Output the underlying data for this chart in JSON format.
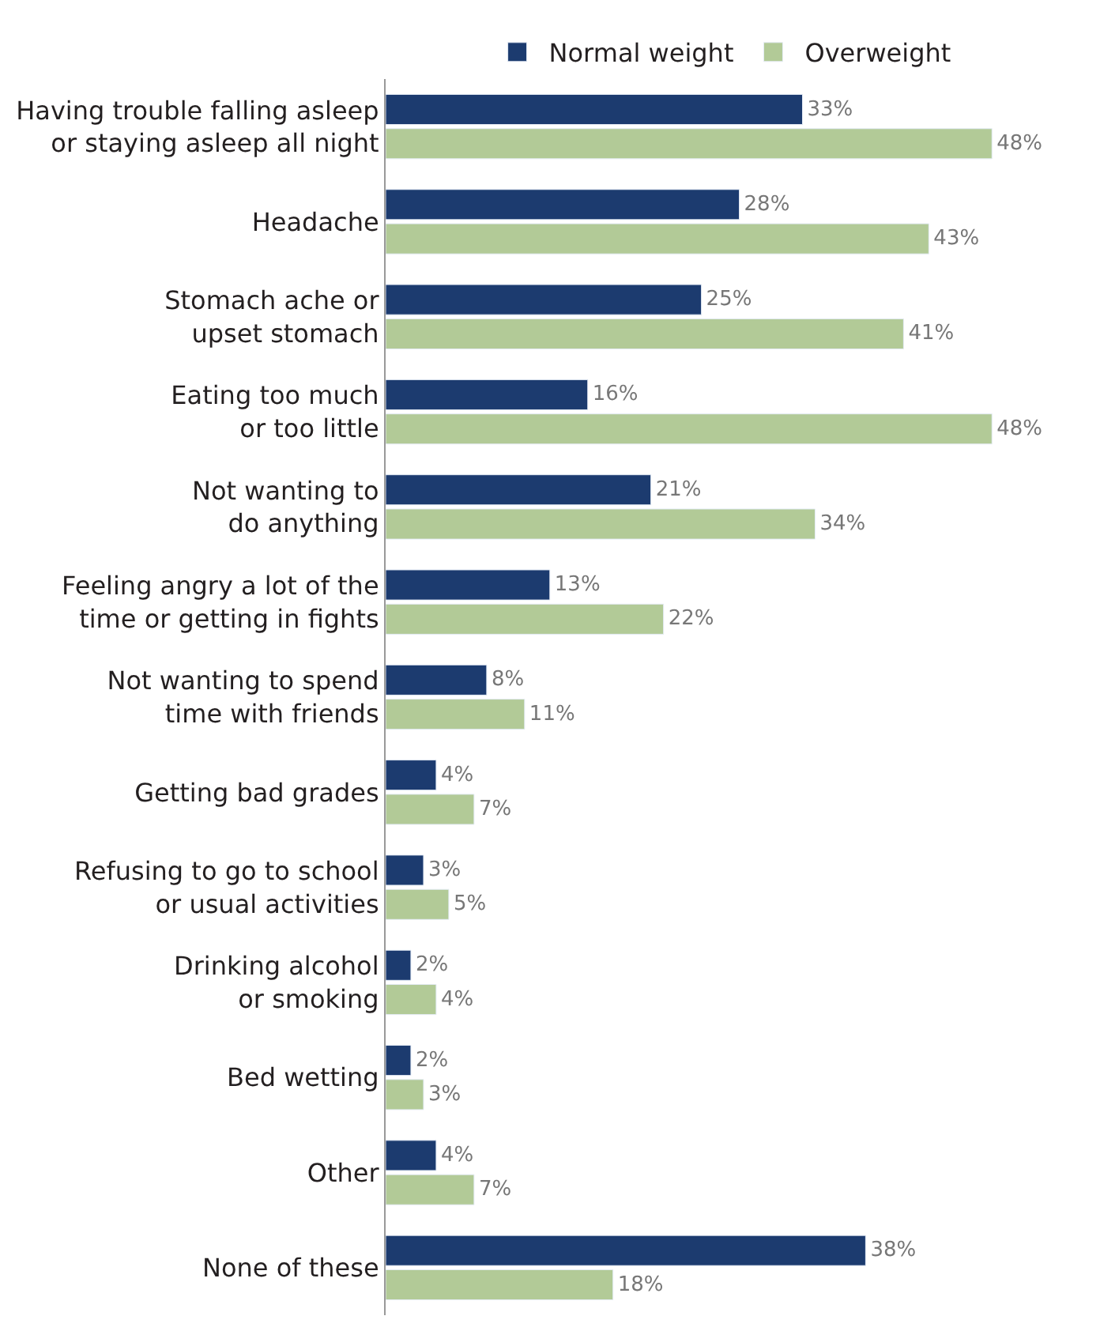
{
  "chart_data": {
    "type": "bar",
    "orientation": "horizontal",
    "legend": "top",
    "categories": [
      "Having trouble falling asleep\nor staying asleep all night",
      "Headache",
      "Stomach ache or\nupset stomach",
      "Eating too much\nor too little",
      "Not wanting to\ndo anything",
      "Feeling angry a lot of the\ntime or getting in fights",
      "Not wanting to spend\ntime with friends",
      "Getting bad grades",
      "Refusing to go to school\nor usual activities",
      "Drinking alcohol\nor smoking",
      "Bed wetting",
      "Other",
      "None of these"
    ],
    "series": [
      {
        "name": "Normal weight",
        "color": "#1c3b6f",
        "values": [
          33,
          28,
          25,
          16,
          21,
          13,
          8,
          4,
          3,
          2,
          2,
          4,
          38
        ],
        "value_labels": [
          "33%",
          "28%",
          "25%",
          "16%",
          "21%",
          "13%",
          "8%",
          "4%",
          "3%",
          "2%",
          "2%",
          "4%",
          "38%"
        ]
      },
      {
        "name": "Overweight",
        "color": "#b2ca97",
        "values": [
          48,
          43,
          41,
          48,
          34,
          22,
          11,
          7,
          5,
          4,
          3,
          7,
          18
        ],
        "value_labels": [
          "48%",
          "43%",
          "41%",
          "48%",
          "34%",
          "22%",
          "11%",
          "7%",
          "5%",
          "4%",
          "3%",
          "7%",
          "18%"
        ]
      }
    ]
  }
}
